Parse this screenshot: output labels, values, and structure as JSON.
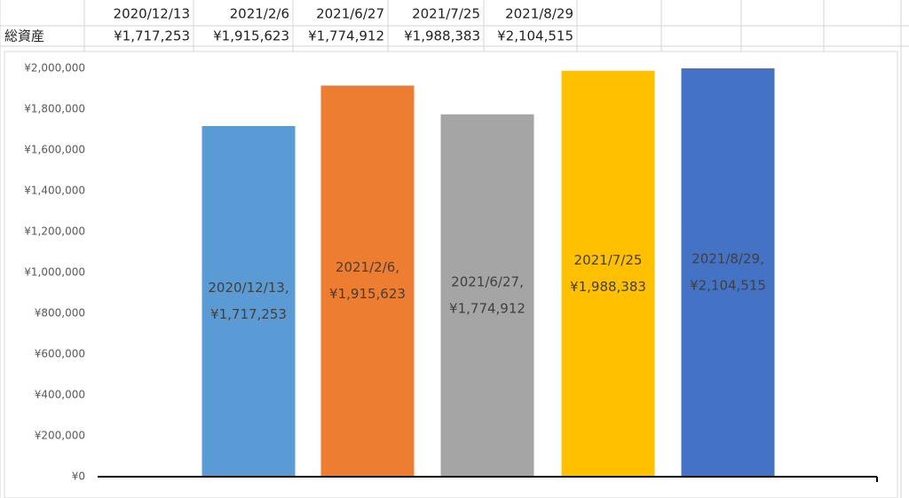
{
  "sheet": {
    "header_row": [
      "2020/12/13",
      "2021/2/6",
      "2021/6/27",
      "2021/7/25",
      "2021/8/29"
    ],
    "row_label": "総資産",
    "row_values": [
      "¥1,717,253",
      "¥1,915,623",
      "¥1,774,912",
      "¥1,988,383",
      "¥2,104,515"
    ]
  },
  "chart_data": {
    "type": "bar",
    "categories": [
      "2020/12/13",
      "2021/2/6",
      "2021/6/27",
      "2021/7/25",
      "2021/8/29"
    ],
    "values": [
      1717253,
      1915623,
      1774912,
      1988383,
      2104515
    ],
    "value_labels": [
      "¥1,717,253",
      "¥1,915,623",
      "¥1,774,912",
      "¥1,988,383",
      "¥2,104,515"
    ],
    "label_prefixes": [
      "2020/12/13,",
      "2021/2/6,",
      "2021/6/27,",
      "2021/7/25",
      "2021/8/29,"
    ],
    "colors": [
      "#5b9bd5",
      "#ed7d31",
      "#a5a5a5",
      "#ffc000",
      "#4472c4"
    ],
    "ylim": [
      0,
      2000000
    ],
    "yticks": [
      {
        "value": 0,
        "label": "¥0"
      },
      {
        "value": 200000,
        "label": "¥200,000"
      },
      {
        "value": 400000,
        "label": "¥400,000"
      },
      {
        "value": 600000,
        "label": "¥600,000"
      },
      {
        "value": 800000,
        "label": "¥800,000"
      },
      {
        "value": 1000000,
        "label": "¥1,000,000"
      },
      {
        "value": 1200000,
        "label": "¥1,200,000"
      },
      {
        "value": 1400000,
        "label": "¥1,400,000"
      },
      {
        "value": 1600000,
        "label": "¥1,600,000"
      },
      {
        "value": 1800000,
        "label": "¥1,800,000"
      },
      {
        "value": 2000000,
        "label": "¥2,000,000"
      }
    ],
    "grid": false
  }
}
